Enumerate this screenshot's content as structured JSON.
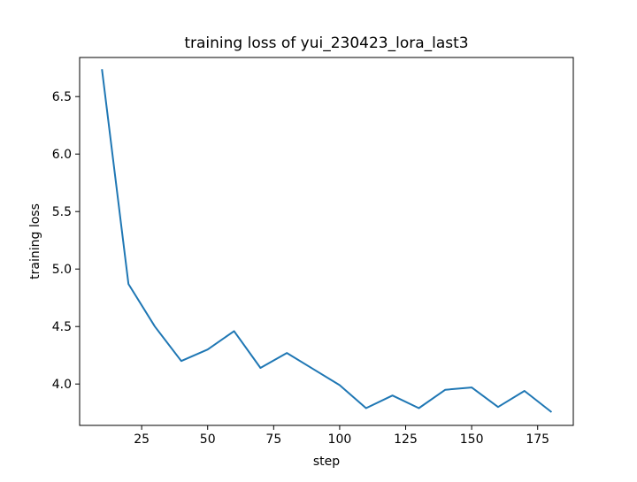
{
  "chart_data": {
    "type": "line",
    "title": "training loss of yui_230423_lora_last3",
    "xlabel": "step",
    "ylabel": "training loss",
    "xlim": [
      1.5,
      188.5
    ],
    "ylim": [
      3.64,
      6.84
    ],
    "xticks": [
      25,
      50,
      75,
      100,
      125,
      150,
      175
    ],
    "yticks": [
      4.0,
      4.5,
      5.0,
      5.5,
      6.0,
      6.5
    ],
    "ytick_labels": [
      "4.0",
      "4.5",
      "5.0",
      "5.5",
      "6.0",
      "6.5"
    ],
    "grid": false,
    "line_color": "#1f77b4",
    "series": [
      {
        "x": [
          10,
          20,
          30,
          40,
          50,
          60,
          70,
          80,
          90,
          100,
          110,
          120,
          130,
          140,
          150,
          160,
          170,
          180
        ],
        "y": [
          6.73,
          4.87,
          4.5,
          4.2,
          4.3,
          4.46,
          4.14,
          4.27,
          4.13,
          3.99,
          3.79,
          3.9,
          3.79,
          3.95,
          3.97,
          3.8,
          3.94,
          3.76
        ]
      }
    ]
  }
}
